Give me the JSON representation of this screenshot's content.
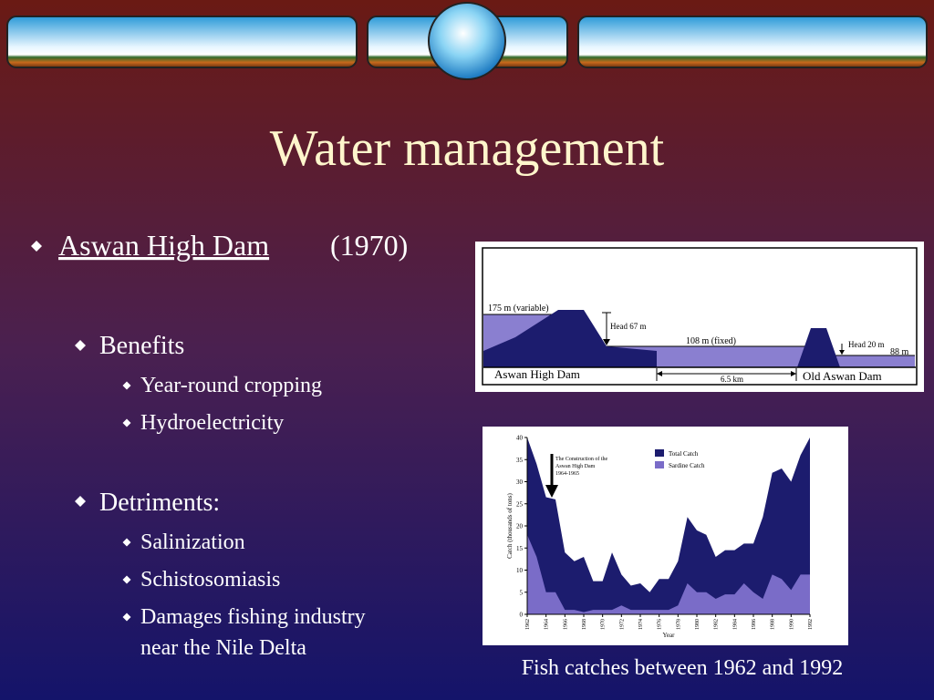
{
  "slide": {
    "title": "Water management",
    "bullet": {
      "link": "Aswan High Dam",
      "text": "(1970)"
    },
    "benefits": {
      "heading": "Benefits",
      "items": [
        "Year-round cropping",
        "Hydroelectricity"
      ]
    },
    "detriments": {
      "heading": "Detriments:",
      "items": [
        "Salinization",
        "Schistosomiasis",
        [
          "Damages fishing industry",
          "near the Nile Delta"
        ]
      ]
    },
    "caption": "Fish catches between 1962 and 1992"
  },
  "diagram": {
    "upstream": "175 m (variable)",
    "head_high": "Head 67 m",
    "middle": "108 m (fixed)",
    "head_old": "Head 20 m",
    "downstream": "88 m",
    "high_dam": "Aswan High Dam",
    "distance": "6.5 km",
    "old_dam": "Old Aswan Dam"
  },
  "chart_data": {
    "type": "area",
    "ylabel": "Catch (thousands of tons)",
    "xlabel": "Year",
    "annotation": "The Construction of the Aswan High Dam 1964-1965",
    "x": [
      1962,
      1963,
      1964,
      1965,
      1966,
      1967,
      1968,
      1969,
      1970,
      1971,
      1972,
      1973,
      1974,
      1975,
      1976,
      1977,
      1978,
      1979,
      1980,
      1981,
      1982,
      1983,
      1984,
      1985,
      1986,
      1987,
      1988,
      1989,
      1990,
      1991,
      1992
    ],
    "series": [
      {
        "name": "Total Catch",
        "color": "#1c1c6e",
        "values": [
          40,
          34,
          26.5,
          26,
          14,
          12,
          13,
          7.5,
          7.5,
          14,
          9,
          6.5,
          7,
          5,
          8,
          8,
          12,
          22,
          19,
          18,
          13,
          14.5,
          14.5,
          16,
          16,
          22,
          32,
          33,
          30,
          36,
          40
        ]
      },
      {
        "name": "Sardine Catch",
        "color": "#7a6cc8",
        "values": [
          18,
          13,
          5,
          5,
          1,
          1,
          0.5,
          1,
          1,
          1,
          2,
          1,
          1,
          1,
          1,
          1,
          2,
          7,
          5,
          5,
          3.5,
          4.5,
          4.5,
          7,
          5,
          3.5,
          9,
          8,
          5.5,
          9,
          9
        ]
      }
    ],
    "xlim": [
      1962,
      1992
    ],
    "xticks": [
      1962,
      1964,
      1966,
      1968,
      1970,
      1972,
      1974,
      1976,
      1978,
      1980,
      1982,
      1984,
      1986,
      1988,
      1990,
      1992
    ],
    "ylim": [
      0,
      40
    ],
    "yticks": [
      0,
      5,
      10,
      15,
      20,
      25,
      30,
      35,
      40
    ],
    "legend": "top-right"
  }
}
